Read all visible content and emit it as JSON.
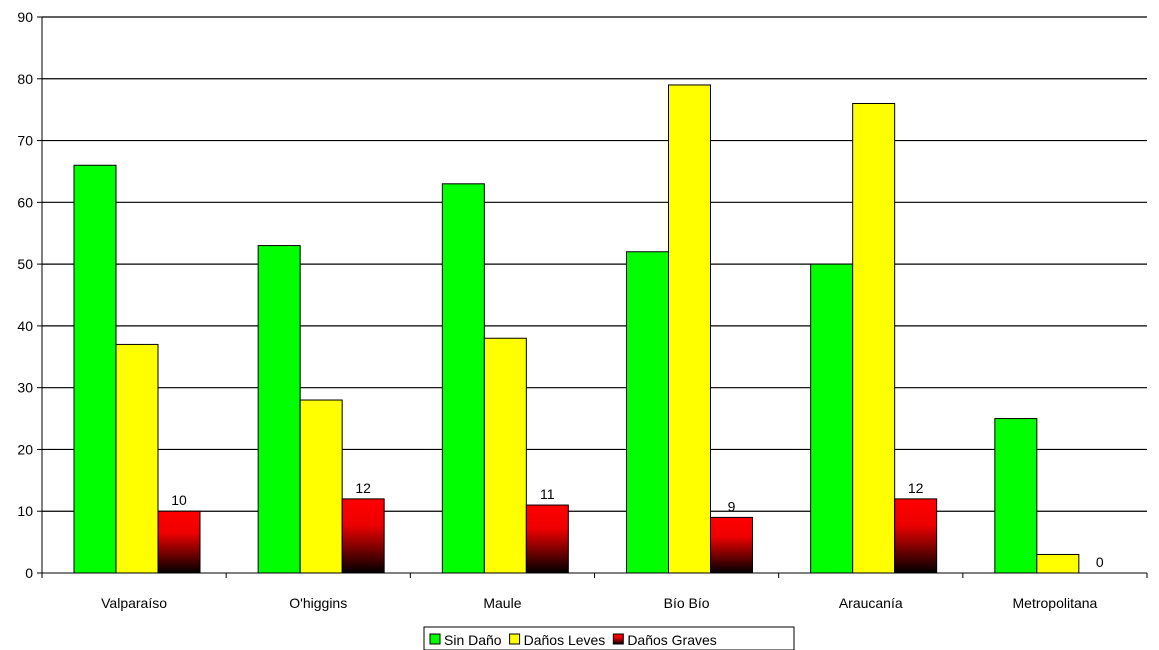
{
  "chart_data": {
    "type": "bar",
    "title": "",
    "xlabel": "",
    "ylabel": "",
    "ylim": [
      0,
      90
    ],
    "yticks": [
      0,
      10,
      20,
      30,
      40,
      50,
      60,
      70,
      80,
      90
    ],
    "grid": true,
    "legend_position": "bottom",
    "categories": [
      "Valparaíso",
      "O'higgins",
      "Maule",
      "Bío Bío",
      "Araucanía",
      "Metropolitana"
    ],
    "series": [
      {
        "name": "Sin Daño",
        "color": "#00ff00",
        "values": [
          66,
          53,
          63,
          52,
          50,
          25
        ]
      },
      {
        "name": "Daños Leves",
        "color": "#ffff00",
        "values": [
          37,
          28,
          38,
          79,
          76,
          3
        ]
      },
      {
        "name": "Daños Graves",
        "color": "#ff0000",
        "values": [
          10,
          12,
          11,
          9,
          12,
          0
        ],
        "show_labels": true
      }
    ]
  }
}
